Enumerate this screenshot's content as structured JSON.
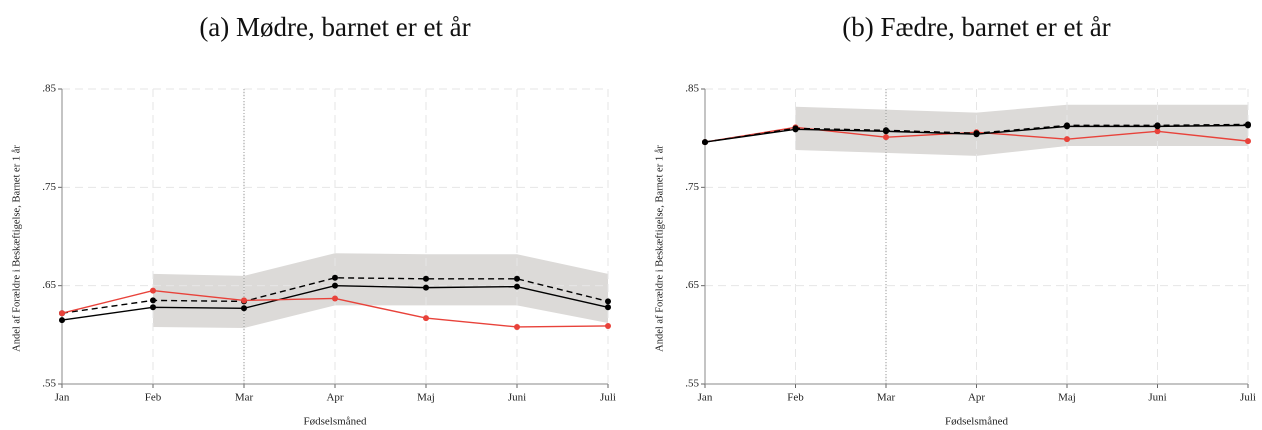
{
  "chart_data": [
    {
      "type": "line",
      "title": "(a) Mødre, barnet er et år",
      "x_label": "Fødselsmåned",
      "y_label": "Andel af Forældre i Beskæftigelse, Barnet er 1 år",
      "categories": [
        "Jan",
        "Feb",
        "Mar",
        "Apr",
        "Maj",
        "Juni",
        "Juli"
      ],
      "ylim": [
        0.55,
        0.85
      ],
      "yticks": [
        {
          "value": 0.55,
          "label": ".55"
        },
        {
          "value": 0.65,
          "label": ".65"
        },
        {
          "value": 0.75,
          "label": ".75"
        },
        {
          "value": 0.85,
          "label": ".85"
        }
      ],
      "grid": true,
      "vline": "Mar",
      "band": {
        "color": "#dcdad8",
        "lower": [
          null,
          0.608,
          0.607,
          0.63,
          0.63,
          0.63,
          0.612
        ],
        "upper": [
          null,
          0.662,
          0.66,
          0.683,
          0.682,
          0.682,
          0.662
        ]
      },
      "series": [
        {
          "color": "#000000",
          "dash": false,
          "values": [
            0.615,
            0.628,
            0.627,
            0.65,
            0.648,
            0.649,
            0.628
          ]
        },
        {
          "color": "#000000",
          "dash": true,
          "values": [
            0.622,
            0.635,
            0.634,
            0.658,
            0.657,
            0.657,
            0.634
          ]
        },
        {
          "color": "#e8423a",
          "dash": false,
          "values": [
            0.622,
            0.645,
            0.635,
            0.637,
            0.617,
            0.608,
            0.609
          ]
        }
      ]
    },
    {
      "type": "line",
      "title": "(b) Fædre, barnet er et år",
      "x_label": "Fødselsmåned",
      "y_label": "Andel af Forældre i Beskæftigelse, Barnet er 1 år",
      "categories": [
        "Jan",
        "Feb",
        "Mar",
        "Apr",
        "Maj",
        "Juni",
        "Juli"
      ],
      "ylim": [
        0.55,
        0.85
      ],
      "yticks": [
        {
          "value": 0.55,
          "label": ".55"
        },
        {
          "value": 0.65,
          "label": ".65"
        },
        {
          "value": 0.75,
          "label": ".75"
        },
        {
          "value": 0.85,
          "label": ".85"
        }
      ],
      "grid": true,
      "vline": "Mar",
      "band": {
        "color": "#dcdad8",
        "lower": [
          null,
          0.788,
          0.785,
          0.782,
          0.792,
          0.792,
          0.792
        ],
        "upper": [
          null,
          0.832,
          0.829,
          0.826,
          0.834,
          0.834,
          0.834
        ]
      },
      "series": [
        {
          "color": "#e8423a",
          "dash": false,
          "values": [
            0.796,
            0.811,
            0.801,
            0.806,
            0.799,
            0.807,
            0.797
          ]
        },
        {
          "color": "#000000",
          "dash": false,
          "values": [
            0.796,
            0.809,
            0.807,
            0.804,
            0.812,
            0.812,
            0.813
          ]
        },
        {
          "color": "#000000",
          "dash": true,
          "values": [
            0.796,
            0.81,
            0.808,
            0.805,
            0.813,
            0.813,
            0.814
          ]
        }
      ]
    }
  ]
}
